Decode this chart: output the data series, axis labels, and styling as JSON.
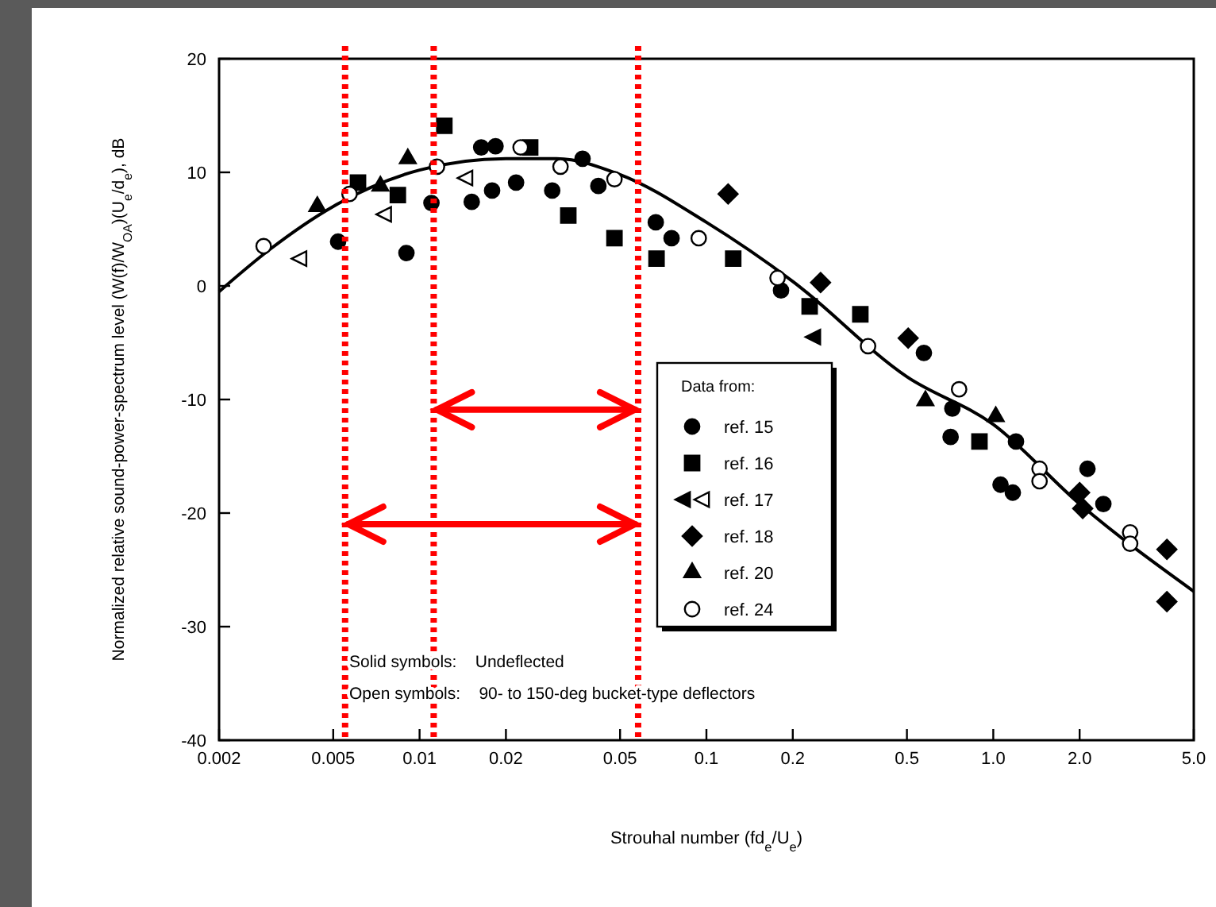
{
  "chart_data": {
    "type": "scatter",
    "xlabel": "Strouhal number (fd$_{e}$/U$_{e}$)",
    "ylabel": "Normalized relative sound-power-spectrum level (W(f)/W$_{OA}$)(U$_{e}$/d$_{e}$), dB",
    "legend_title": "Data from:",
    "log": "x",
    "xlim": [
      0.002,
      5
    ],
    "xticks": [
      0.002,
      0.005,
      0.01,
      0.02,
      0.05,
      0.1,
      0.2,
      0.5,
      {
        "value": 1,
        "label": "1.0"
      },
      {
        "value": 2,
        "label": "2.0"
      },
      {
        "value": 5,
        "label": "5.0"
      }
    ],
    "ylim": [
      -40,
      20
    ],
    "yticks": [
      -40,
      -30,
      -20,
      -10,
      0,
      10,
      20
    ],
    "grid": false,
    "legend": "center",
    "series": [
      {
        "name": "ref. 15",
        "color": "#000000",
        "marker": "circle",
        "x": [
          0.0052,
          0.009,
          0.011,
          0.0152,
          0.0179,
          0.0217,
          0.029,
          0.037,
          0.042,
          0.0666,
          0.0756,
          0.0164,
          0.0184,
          0.182,
          0.573,
          0.71,
          1.06,
          1.17,
          2.13,
          2.42,
          0.72,
          1.2
        ],
        "values": [
          3.9,
          2.9,
          7.3,
          7.4,
          8.4,
          9.1,
          8.4,
          11.2,
          8.8,
          5.6,
          4.2,
          12.2,
          12.3,
          -0.4,
          -5.9,
          -13.3,
          -17.5,
          -18.2,
          -16.1,
          -19.2,
          -10.8,
          -13.7
        ]
      },
      {
        "name": "ref. 16",
        "color": "#000000",
        "marker": "square",
        "x": [
          0.0122,
          0.0061,
          0.0084,
          0.033,
          0.0478,
          0.067,
          0.0243,
          0.124,
          0.895,
          0.344,
          0.229
        ],
        "values": [
          14.1,
          9.1,
          8.0,
          6.2,
          4.2,
          2.4,
          12.2,
          2.4,
          -13.7,
          -2.5,
          -1.8
        ]
      },
      {
        "color": "#000000",
        "marker": "triangle-left",
        "x": [
          0.235
        ],
        "values": [
          -4.5
        ]
      },
      {
        "name": "ref. 17",
        "color": "#ffffff",
        "marker": "triangle-left",
        "x": [
          0.0038,
          0.0075,
          0.0144
        ],
        "values": [
          2.4,
          6.3,
          9.5
        ]
      },
      {
        "name": "ref. 18",
        "color": "#000000",
        "marker": "diamond",
        "x": [
          0.119,
          0.505,
          0.25,
          4.03,
          4.03,
          2.05,
          2.0
        ],
        "values": [
          8.1,
          -4.6,
          0.3,
          -23.2,
          -27.8,
          -19.6,
          -18.2
        ]
      },
      {
        "name": "ref. 20",
        "color": "#000000",
        "marker": "triangle",
        "x": [
          0.0044,
          0.0091,
          0.0073,
          0.58,
          1.02
        ],
        "values": [
          7.0,
          11.2,
          8.8,
          -10.1,
          -11.5
        ]
      },
      {
        "name": "ref. 24",
        "color": "#ffffff",
        "marker": "circle",
        "x": [
          0.00286,
          0.0057,
          0.0115,
          0.0225,
          0.031,
          0.0478,
          0.094,
          0.177,
          0.366,
          0.76,
          1.45,
          1.45,
          3.0,
          3.0
        ],
        "values": [
          3.5,
          8.1,
          10.5,
          12.2,
          10.5,
          9.4,
          4.2,
          0.7,
          -5.3,
          -9.1,
          -16.1,
          -17.2,
          -21.7,
          -22.7
        ]
      },
      {
        "type": "line",
        "color": "#000000",
        "marker": "none",
        "x": [
          0.002,
          0.003,
          0.005,
          0.01,
          0.02,
          0.03,
          0.05,
          0.1,
          0.2,
          0.5,
          1.0,
          2.0,
          5.0
        ],
        "values": [
          -0.5,
          3.2,
          7,
          10.2,
          11.2,
          11.2,
          9.8,
          5.6,
          0.4,
          -8,
          -12.2,
          -19.2,
          -26.9
        ]
      }
    ],
    "ref_lines": [
      {
        "axis": "x",
        "value": 0.0055,
        "color": "#ff0000",
        "line_style": "dotted"
      },
      {
        "axis": "x",
        "value": 0.0112,
        "color": "#ff0000",
        "line_style": "dotted"
      },
      {
        "axis": "x",
        "value": 0.0578,
        "color": "#ff0000",
        "line_style": "dotted"
      }
    ],
    "annotations": [
      "Solid symbols:    Undeflected",
      "Open symbols:    90- to 150-deg bucket-type deflectors"
    ]
  }
}
